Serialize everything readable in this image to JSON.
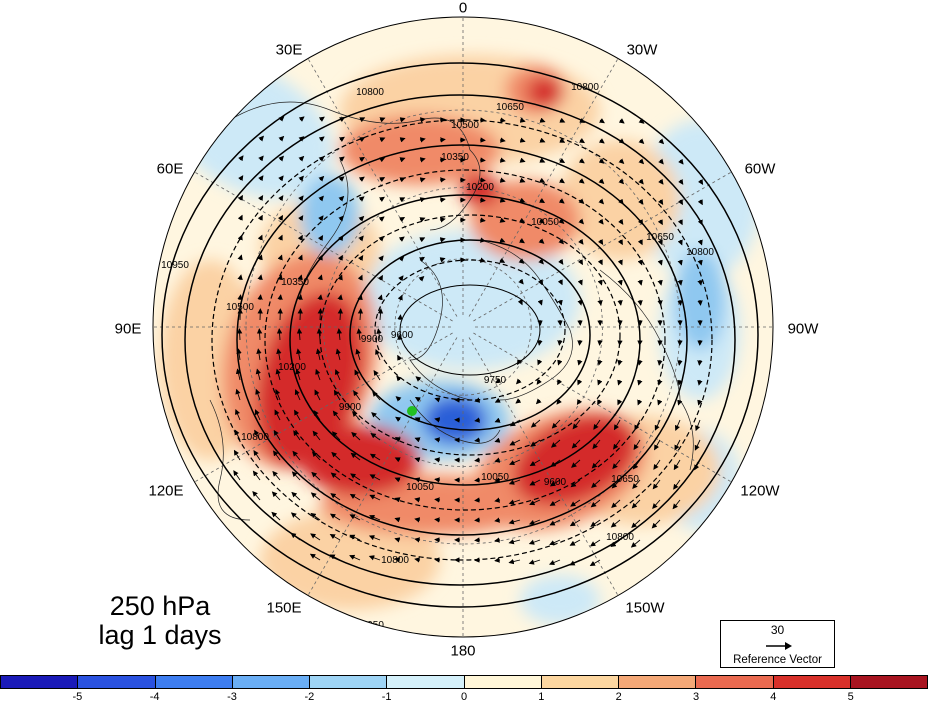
{
  "map": {
    "projection": "north polar stereographic",
    "level_label": "250 hPa",
    "lag_label": "lag 1 days",
    "longitude_labels": {
      "top": "0",
      "upper_right": "30W",
      "right_upper": "60W",
      "right": "90W",
      "right_lower": "120W",
      "lower_right": "150W",
      "bottom": "180",
      "lower_left": "150E",
      "left_lower": "120E",
      "left": "90E",
      "left_upper": "60E",
      "upper_left": "30E"
    },
    "contour_labels": [
      "10950",
      "10800",
      "10650",
      "10500",
      "10350",
      "10200",
      "10050",
      "9900",
      "9750",
      "9600"
    ],
    "reference_vector": {
      "magnitude": "30",
      "label": "Reference Vector"
    },
    "colorbar": {
      "colors": [
        "#1a1ab8",
        "#2a52e0",
        "#3d7df0",
        "#6aaef5",
        "#9ed4f5",
        "#d4f0fa",
        "#fff6d8",
        "#fcd6a0",
        "#f4a877",
        "#ea6a50",
        "#d8302a",
        "#a81420"
      ],
      "ticks": [
        "-5",
        "-4",
        "-3",
        "-2",
        "-1",
        "0",
        "1",
        "2",
        "3",
        "4",
        "5"
      ]
    },
    "anomaly_colors": {
      "strong_positive": "#d42a2a",
      "moderate_positive": "#f08a68",
      "weak_positive": "#fbd2a4",
      "near_zero": "#fff6e0",
      "weak_negative": "#cde9f7",
      "moderate_negative": "#8fc8f0",
      "strong_negative": "#2a5ed8"
    },
    "marker_color": "#22c022"
  }
}
